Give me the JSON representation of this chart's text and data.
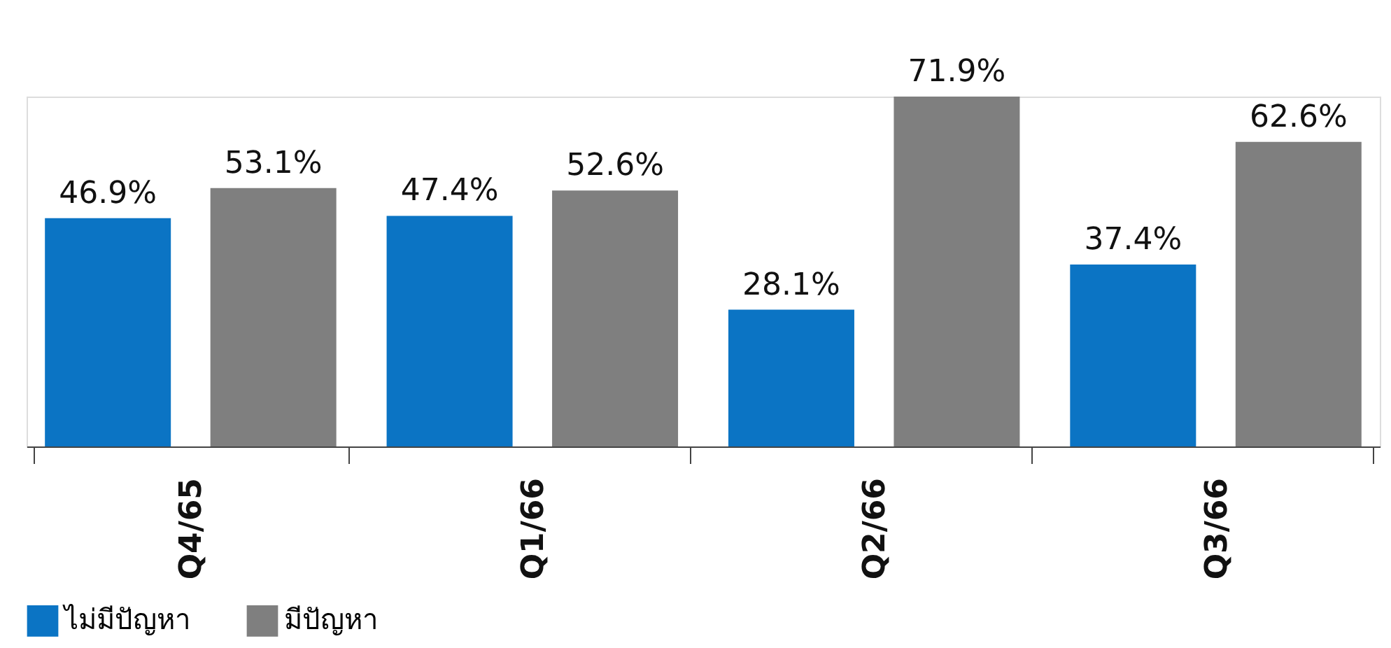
{
  "chart_data": {
    "type": "bar",
    "categories": [
      "Q4/65",
      "Q1/66",
      "Q2/66",
      "Q3/66"
    ],
    "series": [
      {
        "name": "ไม่มีปัญหา",
        "color": "#0b74c4",
        "values": [
          46.9,
          47.4,
          28.1,
          37.4
        ],
        "value_labels": [
          "46.9%",
          "47.4%",
          "28.1%",
          "37.4%"
        ]
      },
      {
        "name": "มีปัญหา",
        "color": "#7f7f7f",
        "values": [
          53.1,
          52.6,
          71.9,
          62.6
        ],
        "value_labels": [
          "53.1%",
          "52.6%",
          "71.9%",
          "62.6%"
        ]
      }
    ],
    "tick_labels": "x",
    "grid": false,
    "legend": "bottom"
  }
}
